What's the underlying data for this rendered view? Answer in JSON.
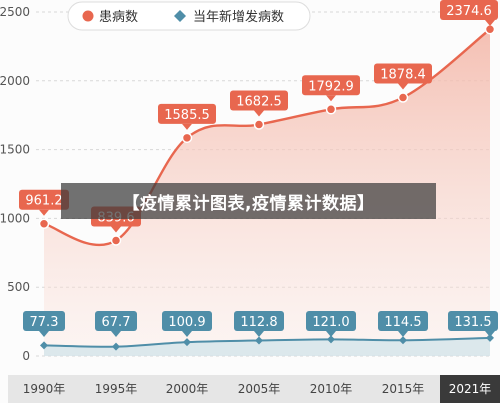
{
  "overlay_caption": "【疫情累计图表,疫情累计数据】",
  "chart_data": {
    "type": "line",
    "categories": [
      "1990年",
      "1995年",
      "2000年",
      "2005年",
      "2010年",
      "2015年",
      "2021年"
    ],
    "x": [
      1990,
      1995,
      2000,
      2005,
      2010,
      2015,
      2021
    ],
    "series": [
      {
        "name": "患病数",
        "color": "#e8674f",
        "values": [
          961.2,
          839.6,
          1585.5,
          1682.5,
          1792.9,
          1878.4,
          2374.6
        ],
        "labels": [
          "961.2",
          "839.6",
          "1585.5",
          "1682.5",
          "1792.9",
          "1878.4",
          "2374.6"
        ]
      },
      {
        "name": "当年新增发病数",
        "color": "#4f8ea8",
        "values": [
          77.3,
          67.7,
          100.9,
          112.8,
          121.0,
          114.5,
          131.5
        ],
        "labels": [
          "77.3",
          "67.7",
          "100.9",
          "112.8",
          "121.0",
          "114.5",
          "131.5"
        ]
      }
    ],
    "yticks": [
      0,
      500,
      1000,
      1500,
      2000,
      2500
    ],
    "ytick_labels": [
      "0",
      "500",
      "1000",
      "1500",
      "2000",
      "2500"
    ],
    "ylim": [
      0,
      2500
    ],
    "grid": true,
    "legend": "top-left",
    "highlighted_category": "2021年"
  }
}
